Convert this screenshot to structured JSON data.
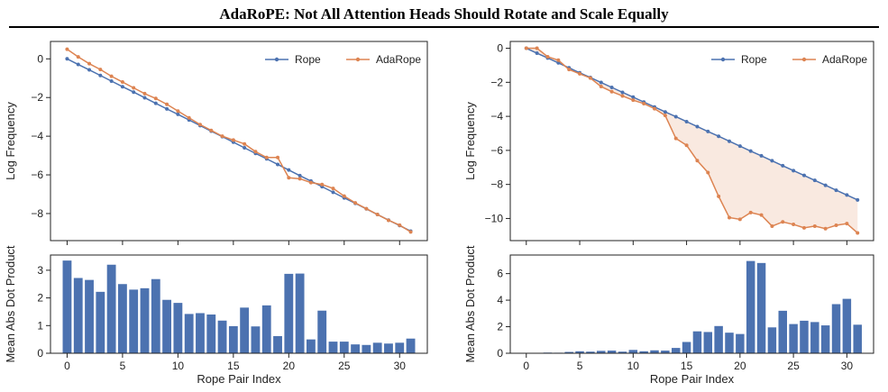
{
  "page": {
    "title": "AdaRoPE: Not All Attention Heads Should Rotate and Scale Equally"
  },
  "colors": {
    "rope": "#4c72b0",
    "adarope": "#dd8452",
    "fill": "#dd8452"
  },
  "chart_data": [
    {
      "type": "line",
      "panel": "left-top",
      "xlabel": "",
      "ylabel": "Log Frequency",
      "xlim": [
        -1.5,
        32.5
      ],
      "ylim": [
        -9.4,
        0.9
      ],
      "yticks": [
        0,
        -2,
        -4,
        -6,
        -8
      ],
      "yticklabels": [
        "0",
        "−2",
        "−4",
        "−6",
        "−8"
      ],
      "grid": false,
      "legend": "top-right",
      "x": [
        0,
        1,
        2,
        3,
        4,
        5,
        6,
        7,
        8,
        9,
        10,
        11,
        12,
        13,
        14,
        15,
        16,
        17,
        18,
        19,
        20,
        21,
        22,
        23,
        24,
        25,
        26,
        27,
        28,
        29,
        30,
        31
      ],
      "series": [
        {
          "name": "Rope",
          "color": "#4c72b0",
          "values": [
            0.0,
            -0.29,
            -0.57,
            -0.86,
            -1.15,
            -1.44,
            -1.72,
            -2.01,
            -2.3,
            -2.59,
            -2.87,
            -3.16,
            -3.45,
            -3.74,
            -4.02,
            -4.31,
            -4.6,
            -4.89,
            -5.17,
            -5.46,
            -5.75,
            -6.04,
            -6.32,
            -6.61,
            -6.9,
            -7.19,
            -7.47,
            -7.76,
            -8.05,
            -8.34,
            -8.62,
            -8.91
          ]
        },
        {
          "name": "AdaRope",
          "color": "#dd8452",
          "values": [
            0.5,
            0.1,
            -0.25,
            -0.55,
            -0.9,
            -1.2,
            -1.5,
            -1.8,
            -2.05,
            -2.35,
            -2.7,
            -3.05,
            -3.4,
            -3.7,
            -4.0,
            -4.2,
            -4.4,
            -4.8,
            -5.1,
            -5.1,
            -6.15,
            -6.2,
            -6.4,
            -6.5,
            -6.7,
            -7.1,
            -7.45,
            -7.75,
            -8.05,
            -8.35,
            -8.6,
            -8.95
          ]
        }
      ]
    },
    {
      "type": "bar",
      "panel": "left-bottom",
      "xlabel": "Rope Pair Index",
      "ylabel": "Mean Abs Dot Product",
      "xlim": [
        -1.5,
        32.5
      ],
      "ylim": [
        0,
        3.55
      ],
      "yticks": [
        0,
        1,
        2,
        3
      ],
      "yticklabels": [
        "0",
        "1",
        "2",
        "3"
      ],
      "xticks": [
        0,
        5,
        10,
        15,
        20,
        25,
        30
      ],
      "xticklabels": [
        "0",
        "5",
        "10",
        "15",
        "20",
        "25",
        "30"
      ],
      "color": "#4c72b0",
      "x": [
        0,
        1,
        2,
        3,
        4,
        5,
        6,
        7,
        8,
        9,
        10,
        11,
        12,
        13,
        14,
        15,
        16,
        17,
        18,
        19,
        20,
        21,
        22,
        23,
        24,
        25,
        26,
        27,
        28,
        29,
        30,
        31
      ],
      "values": [
        3.35,
        2.72,
        2.65,
        2.22,
        3.2,
        2.5,
        2.3,
        2.35,
        2.68,
        1.93,
        1.82,
        1.42,
        1.45,
        1.4,
        1.18,
        0.98,
        1.65,
        0.97,
        1.73,
        0.62,
        2.87,
        2.88,
        0.5,
        1.54,
        0.42,
        0.42,
        0.32,
        0.3,
        0.38,
        0.35,
        0.38,
        0.53
      ]
    },
    {
      "type": "line",
      "panel": "right-top",
      "xlabel": "",
      "ylabel": "Log Frequency",
      "xlim": [
        -1.5,
        32.5
      ],
      "ylim": [
        -11.3,
        0.4
      ],
      "yticks": [
        0,
        -2,
        -4,
        -6,
        -8,
        -10
      ],
      "yticklabels": [
        "0",
        "−2",
        "−4",
        "−6",
        "−8",
        "−10"
      ],
      "grid": false,
      "legend": "top-right",
      "shaded_between": [
        "Rope",
        "AdaRope"
      ],
      "x": [
        0,
        1,
        2,
        3,
        4,
        5,
        6,
        7,
        8,
        9,
        10,
        11,
        12,
        13,
        14,
        15,
        16,
        17,
        18,
        19,
        20,
        21,
        22,
        23,
        24,
        25,
        26,
        27,
        28,
        29,
        30,
        31
      ],
      "series": [
        {
          "name": "Rope",
          "color": "#4c72b0",
          "values": [
            0.0,
            -0.29,
            -0.57,
            -0.86,
            -1.15,
            -1.44,
            -1.72,
            -2.01,
            -2.3,
            -2.59,
            -2.87,
            -3.16,
            -3.45,
            -3.74,
            -4.02,
            -4.31,
            -4.6,
            -4.89,
            -5.17,
            -5.46,
            -5.75,
            -6.04,
            -6.32,
            -6.61,
            -6.9,
            -7.19,
            -7.47,
            -7.76,
            -8.05,
            -8.34,
            -8.62,
            -8.91
          ]
        },
        {
          "name": "AdaRope",
          "color": "#dd8452",
          "values": [
            0.0,
            0.0,
            -0.5,
            -0.7,
            -1.25,
            -1.5,
            -1.75,
            -2.25,
            -2.55,
            -2.8,
            -3.05,
            -3.25,
            -3.55,
            -3.95,
            -5.3,
            -5.7,
            -6.6,
            -7.3,
            -8.7,
            -9.95,
            -10.05,
            -9.65,
            -9.8,
            -10.45,
            -10.2,
            -10.35,
            -10.55,
            -10.45,
            -10.6,
            -10.4,
            -10.3,
            -10.85
          ]
        }
      ]
    },
    {
      "type": "bar",
      "panel": "right-bottom",
      "xlabel": "Rope Pair Index",
      "ylabel": "Mean Abs Dot Product",
      "xlim": [
        -1.5,
        32.5
      ],
      "ylim": [
        0,
        7.4
      ],
      "yticks": [
        0,
        2,
        4,
        6
      ],
      "yticklabels": [
        "0",
        "2",
        "4",
        "6"
      ],
      "xticks": [
        0,
        5,
        10,
        15,
        20,
        25,
        30
      ],
      "xticklabels": [
        "0",
        "5",
        "10",
        "15",
        "20",
        "25",
        "30"
      ],
      "color": "#4c72b0",
      "x": [
        0,
        1,
        2,
        3,
        4,
        5,
        6,
        7,
        8,
        9,
        10,
        11,
        12,
        13,
        14,
        15,
        16,
        17,
        18,
        19,
        20,
        21,
        22,
        23,
        24,
        25,
        26,
        27,
        28,
        29,
        30,
        31
      ],
      "values": [
        0.02,
        0.03,
        0.05,
        0.04,
        0.1,
        0.15,
        0.12,
        0.18,
        0.2,
        0.12,
        0.25,
        0.15,
        0.22,
        0.2,
        0.4,
        0.85,
        1.65,
        1.6,
        2.05,
        1.55,
        1.45,
        6.95,
        6.8,
        1.95,
        3.2,
        2.2,
        2.45,
        2.35,
        2.1,
        3.7,
        4.1,
        2.15
      ]
    }
  ]
}
